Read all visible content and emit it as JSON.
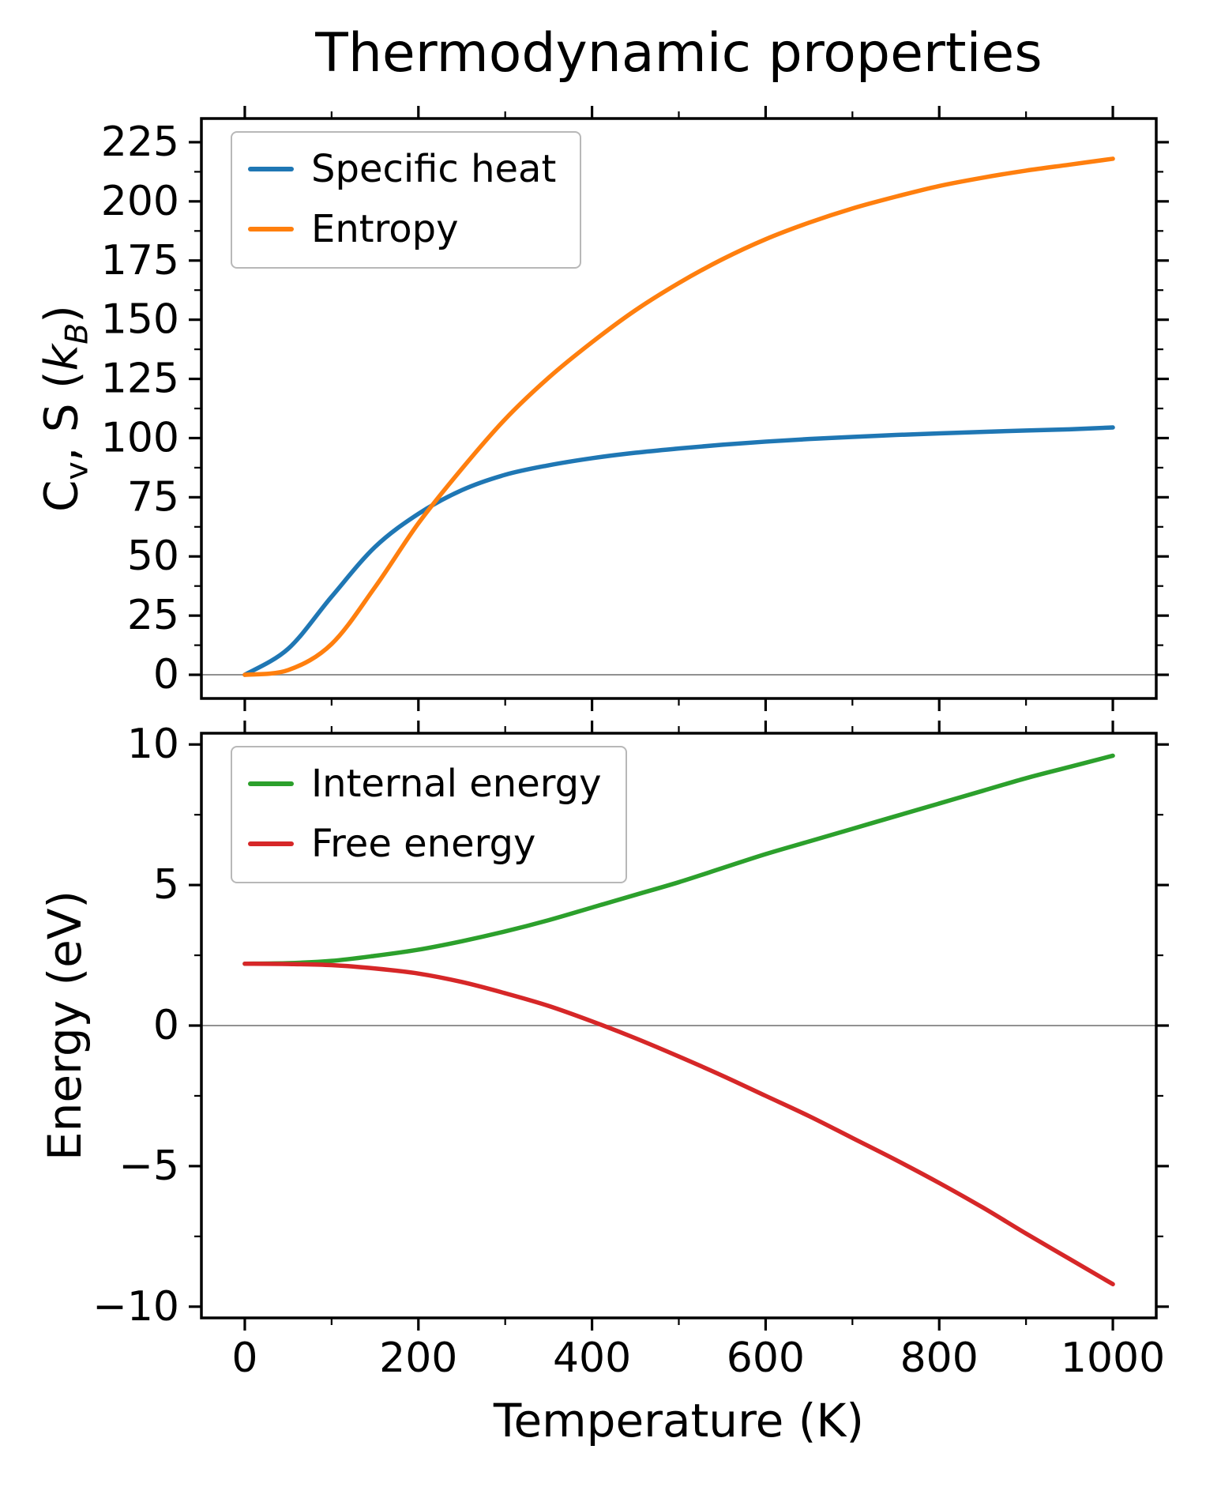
{
  "figure": {
    "title": "Thermodynamic properties",
    "background": "#ffffff",
    "spine_color": "#000000",
    "text_color": "#000000",
    "zero_line_color": "#919191"
  },
  "chart_data": [
    {
      "type": "line",
      "title": "Thermodynamic properties",
      "xlabel": "",
      "ylabel": "Cv, S (kB)",
      "ylabel_parts": {
        "base": "C",
        "base_sub": "v",
        "mid": ", S (",
        "k": "k",
        "k_sub": "B",
        "close": ")"
      },
      "xlim": [
        -50,
        1050
      ],
      "ylim": [
        -10,
        235
      ],
      "xticks": [
        0,
        200,
        400,
        600,
        800,
        1000
      ],
      "yticks": [
        0,
        25,
        50,
        75,
        100,
        125,
        150,
        175,
        200,
        225
      ],
      "show_x_tick_labels": false,
      "zero_line": true,
      "grid": false,
      "legend_position": "upper left",
      "x": [
        0,
        50,
        100,
        150,
        200,
        250,
        300,
        350,
        400,
        450,
        500,
        550,
        600,
        650,
        700,
        750,
        800,
        850,
        900,
        950,
        1000
      ],
      "series": [
        {
          "name": "Specific heat",
          "color": "#1f77b4",
          "values": [
            0,
            11,
            33,
            54,
            68,
            78,
            84.5,
            88.5,
            91.5,
            93.8,
            95.6,
            97.2,
            98.5,
            99.6,
            100.5,
            101.3,
            102,
            102.6,
            103.2,
            103.7,
            104.5
          ]
        },
        {
          "name": "Entropy",
          "color": "#ff7f0e",
          "values": [
            0,
            2,
            13,
            37,
            64,
            87,
            108,
            125.5,
            140.5,
            154,
            165.5,
            175.5,
            184,
            191,
            197,
            202,
            206.5,
            210,
            213,
            215.5,
            218
          ]
        }
      ]
    },
    {
      "type": "line",
      "title": "",
      "xlabel": "Temperature (K)",
      "ylabel": "Energy (eV)",
      "xlim": [
        -50,
        1050
      ],
      "ylim": [
        -10.4,
        10.4
      ],
      "xticks": [
        0,
        200,
        400,
        600,
        800,
        1000
      ],
      "yticks": [
        -10,
        -5,
        0,
        5,
        10
      ],
      "show_x_tick_labels": true,
      "zero_line": true,
      "grid": false,
      "legend_position": "upper left",
      "x": [
        0,
        50,
        100,
        150,
        200,
        250,
        300,
        350,
        400,
        450,
        500,
        550,
        600,
        650,
        700,
        750,
        800,
        850,
        900,
        950,
        1000
      ],
      "series": [
        {
          "name": "Internal energy",
          "color": "#2ca02c",
          "values": [
            2.2,
            2.22,
            2.3,
            2.48,
            2.7,
            3.0,
            3.35,
            3.75,
            4.2,
            4.65,
            5.1,
            5.6,
            6.1,
            6.55,
            7.0,
            7.45,
            7.9,
            8.35,
            8.8,
            9.2,
            9.6
          ]
        },
        {
          "name": "Free energy",
          "color": "#d62728",
          "values": [
            2.2,
            2.19,
            2.15,
            2.03,
            1.85,
            1.55,
            1.15,
            0.7,
            0.15,
            -0.45,
            -1.1,
            -1.78,
            -2.5,
            -3.22,
            -4.0,
            -4.78,
            -5.6,
            -6.47,
            -7.4,
            -8.3,
            -9.2
          ]
        }
      ]
    }
  ]
}
